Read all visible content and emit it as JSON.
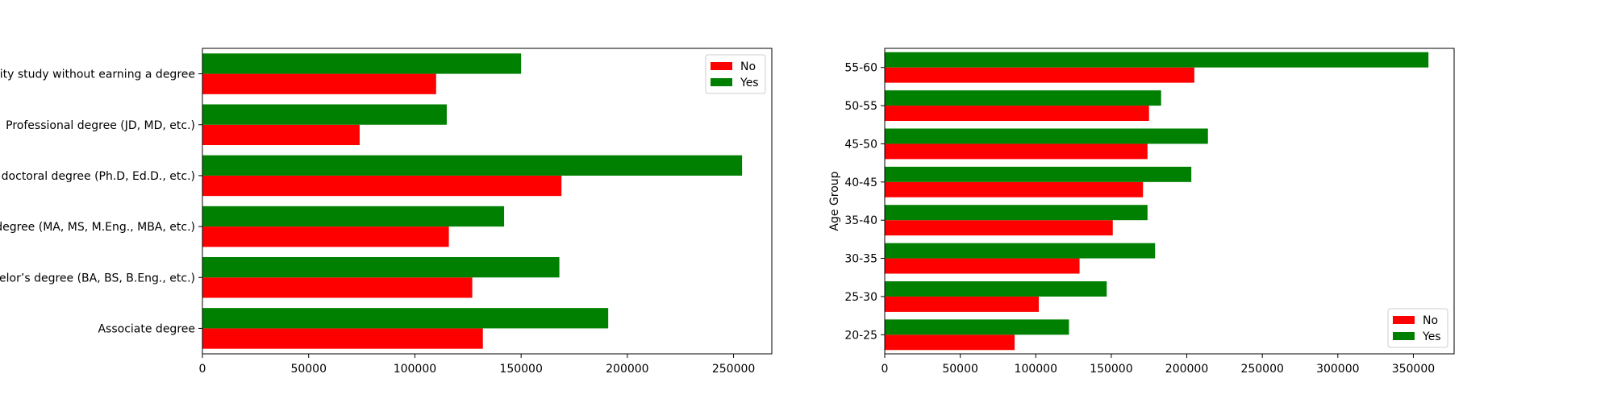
{
  "colors": {
    "no": "#ff0000",
    "yes": "#008000"
  },
  "chart_data": [
    {
      "type": "bar",
      "orientation": "horizontal",
      "categories": [
        "Associate degree",
        "Bachelor’s degree (BA, BS, B.Eng., etc.)",
        "Master’s degree (MA, MS, M.Eng., MBA, etc.)",
        "Other doctoral degree (Ph.D, Ed.D., etc.)",
        "Professional degree (JD, MD, etc.)",
        "Some college/university study without earning a degree"
      ],
      "category_tick_labels": [
        "Associate degree",
        "elor’s degree (BA, BS, B.Eng., etc.)",
        "degree (MA, MS, M.Eng., MBA, etc.)",
        "doctoral degree (Ph.D, Ed.D., etc.)",
        "Professional degree (JD, MD, etc.)",
        "ity study without earning a degree"
      ],
      "series": [
        {
          "name": "No",
          "color": "#ff0000",
          "values": [
            132000,
            127000,
            116000,
            169000,
            74000,
            110000
          ]
        },
        {
          "name": "Yes",
          "color": "#008000",
          "values": [
            191000,
            168000,
            142000,
            254000,
            115000,
            150000
          ]
        }
      ],
      "xlim": [
        0,
        268000
      ],
      "xticks": [
        0,
        50000,
        100000,
        150000,
        200000,
        250000
      ],
      "xtick_labels": [
        "0",
        "50000",
        "100000",
        "150000",
        "200000",
        "250000"
      ],
      "xlabel": "",
      "ylabel": "",
      "legend": "top-right",
      "grid": false
    },
    {
      "type": "bar",
      "orientation": "horizontal",
      "categories": [
        "20-25",
        "25-30",
        "30-35",
        "35-40",
        "40-45",
        "45-50",
        "50-55",
        "55-60"
      ],
      "series": [
        {
          "name": "No",
          "color": "#ff0000",
          "values": [
            86000,
            102000,
            129000,
            151000,
            171000,
            174000,
            175000,
            205000
          ]
        },
        {
          "name": "Yes",
          "color": "#008000",
          "values": [
            122000,
            147000,
            179000,
            174000,
            203000,
            214000,
            183000,
            360000
          ]
        }
      ],
      "xlim": [
        0,
        377000
      ],
      "xticks": [
        0,
        50000,
        100000,
        150000,
        200000,
        250000,
        300000,
        350000
      ],
      "xtick_labels": [
        "0",
        "50000",
        "100000",
        "150000",
        "200000",
        "250000",
        "300000",
        "350000"
      ],
      "xlabel": "",
      "ylabel": "Age Group",
      "legend": "bottom-right",
      "grid": false
    }
  ]
}
